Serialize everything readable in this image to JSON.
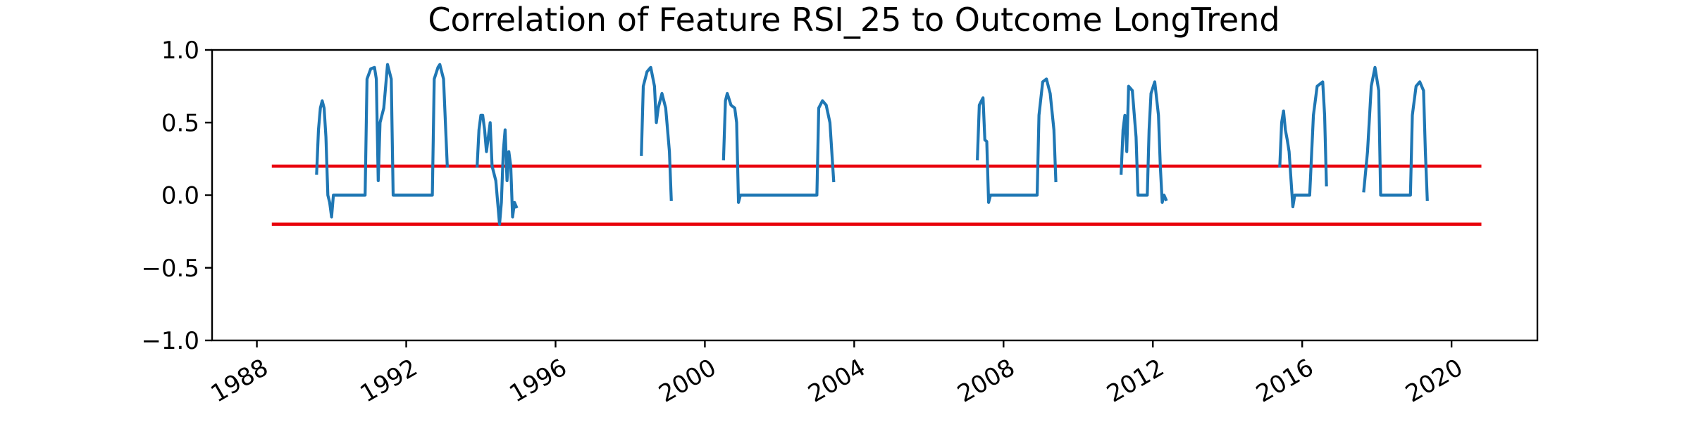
{
  "chart_data": {
    "type": "line",
    "title": "Correlation of Feature RSI_25 to Outcome LongTrend",
    "xlabel": "",
    "ylabel": "",
    "xlim": [
      1986.8,
      2022.3
    ],
    "ylim": [
      -1.0,
      1.0
    ],
    "x_ticks": [
      1988,
      1992,
      1996,
      2000,
      2004,
      2008,
      2012,
      2016,
      2020
    ],
    "x_tick_labels": [
      "1988",
      "1992",
      "1996",
      "2000",
      "2004",
      "2008",
      "2012",
      "2016",
      "2020"
    ],
    "y_ticks": [
      1.0,
      0.5,
      0.0,
      -0.5,
      -1.0
    ],
    "y_tick_labels": [
      "1.0",
      "0.5",
      "0.0",
      "−0.5",
      "−1.0"
    ],
    "grid": false,
    "threshold_lines": [
      {
        "y": 0.2,
        "x_start": 1988.4,
        "x_end": 2020.8,
        "color": "#e8000b"
      },
      {
        "y": -0.2,
        "x_start": 1988.4,
        "x_end": 2020.8,
        "color": "#e8000b"
      }
    ],
    "series": [
      {
        "color": "#1f77b4",
        "segments": [
          [
            [
              1989.6,
              0.15
            ],
            [
              1989.65,
              0.45
            ],
            [
              1989.7,
              0.6
            ],
            [
              1989.75,
              0.65
            ],
            [
              1989.8,
              0.6
            ],
            [
              1989.85,
              0.4
            ],
            [
              1989.9,
              0.0
            ],
            [
              1989.95,
              -0.05
            ],
            [
              1990.0,
              -0.15
            ],
            [
              1990.05,
              0.0
            ],
            [
              1990.9,
              0.0
            ],
            [
              1990.95,
              0.8
            ],
            [
              1991.05,
              0.87
            ],
            [
              1991.15,
              0.88
            ],
            [
              1991.2,
              0.8
            ],
            [
              1991.25,
              0.1
            ],
            [
              1991.3,
              0.5
            ],
            [
              1991.4,
              0.6
            ],
            [
              1991.5,
              0.9
            ],
            [
              1991.6,
              0.8
            ],
            [
              1991.65,
              0.0
            ],
            [
              1992.7,
              0.0
            ],
            [
              1992.75,
              0.8
            ],
            [
              1992.85,
              0.88
            ],
            [
              1992.9,
              0.9
            ],
            [
              1993.0,
              0.8
            ],
            [
              1993.1,
              0.2
            ]
          ],
          [
            [
              1993.9,
              0.2
            ],
            [
              1993.95,
              0.45
            ],
            [
              1994.0,
              0.55
            ],
            [
              1994.05,
              0.55
            ],
            [
              1994.1,
              0.45
            ],
            [
              1994.15,
              0.3
            ],
            [
              1994.25,
              0.5
            ],
            [
              1994.3,
              0.2
            ],
            [
              1994.4,
              0.1
            ],
            [
              1994.5,
              -0.2
            ],
            [
              1994.55,
              -0.05
            ],
            [
              1994.6,
              0.3
            ],
            [
              1994.65,
              0.45
            ],
            [
              1994.7,
              0.1
            ],
            [
              1994.75,
              0.3
            ],
            [
              1994.8,
              0.2
            ],
            [
              1994.85,
              -0.15
            ],
            [
              1994.9,
              -0.05
            ],
            [
              1994.95,
              -0.08
            ]
          ],
          [
            [
              1998.3,
              0.28
            ],
            [
              1998.35,
              0.75
            ],
            [
              1998.45,
              0.85
            ],
            [
              1998.55,
              0.88
            ],
            [
              1998.65,
              0.75
            ],
            [
              1998.7,
              0.5
            ],
            [
              1998.75,
              0.6
            ],
            [
              1998.85,
              0.7
            ],
            [
              1998.95,
              0.6
            ],
            [
              1999.05,
              0.3
            ],
            [
              1999.1,
              -0.03
            ]
          ],
          [
            [
              2000.5,
              0.25
            ],
            [
              2000.55,
              0.65
            ],
            [
              2000.6,
              0.7
            ],
            [
              2000.7,
              0.62
            ],
            [
              2000.8,
              0.6
            ],
            [
              2000.85,
              0.5
            ],
            [
              2000.9,
              -0.05
            ],
            [
              2000.95,
              0.0
            ],
            [
              2003.0,
              0.0
            ],
            [
              2003.05,
              0.6
            ],
            [
              2003.15,
              0.65
            ],
            [
              2003.25,
              0.62
            ],
            [
              2003.35,
              0.5
            ],
            [
              2003.45,
              0.1
            ]
          ],
          [
            [
              2007.3,
              0.25
            ],
            [
              2007.35,
              0.62
            ],
            [
              2007.45,
              0.67
            ],
            [
              2007.5,
              0.38
            ],
            [
              2007.55,
              0.37
            ],
            [
              2007.6,
              -0.05
            ],
            [
              2007.65,
              0.0
            ],
            [
              2008.9,
              0.0
            ],
            [
              2008.95,
              0.55
            ],
            [
              2009.05,
              0.78
            ],
            [
              2009.15,
              0.8
            ],
            [
              2009.25,
              0.7
            ],
            [
              2009.35,
              0.45
            ],
            [
              2009.4,
              0.1
            ]
          ],
          [
            [
              2011.15,
              0.15
            ],
            [
              2011.2,
              0.45
            ],
            [
              2011.25,
              0.55
            ],
            [
              2011.3,
              0.3
            ],
            [
              2011.35,
              0.75
            ],
            [
              2011.45,
              0.72
            ],
            [
              2011.55,
              0.4
            ],
            [
              2011.6,
              0.0
            ],
            [
              2011.85,
              0.0
            ],
            [
              2011.9,
              0.45
            ],
            [
              2011.95,
              0.7
            ],
            [
              2012.05,
              0.78
            ],
            [
              2012.15,
              0.55
            ],
            [
              2012.2,
              0.2
            ],
            [
              2012.25,
              -0.05
            ],
            [
              2012.3,
              0.0
            ],
            [
              2012.35,
              -0.03
            ]
          ],
          [
            [
              2015.4,
              0.2
            ],
            [
              2015.45,
              0.5
            ],
            [
              2015.5,
              0.58
            ],
            [
              2015.55,
              0.45
            ],
            [
              2015.6,
              0.38
            ],
            [
              2015.65,
              0.3
            ],
            [
              2015.75,
              -0.08
            ],
            [
              2015.8,
              0.0
            ],
            [
              2016.2,
              0.0
            ],
            [
              2016.3,
              0.55
            ],
            [
              2016.4,
              0.75
            ],
            [
              2016.55,
              0.78
            ],
            [
              2016.6,
              0.55
            ],
            [
              2016.65,
              0.07
            ]
          ],
          [
            [
              2017.65,
              0.03
            ],
            [
              2017.75,
              0.3
            ],
            [
              2017.85,
              0.75
            ],
            [
              2017.95,
              0.88
            ],
            [
              2018.05,
              0.72
            ],
            [
              2018.1,
              0.0
            ],
            [
              2018.9,
              0.0
            ],
            [
              2018.95,
              0.55
            ],
            [
              2019.05,
              0.75
            ],
            [
              2019.15,
              0.78
            ],
            [
              2019.25,
              0.72
            ],
            [
              2019.3,
              0.3
            ],
            [
              2019.35,
              -0.03
            ]
          ]
        ]
      }
    ]
  }
}
